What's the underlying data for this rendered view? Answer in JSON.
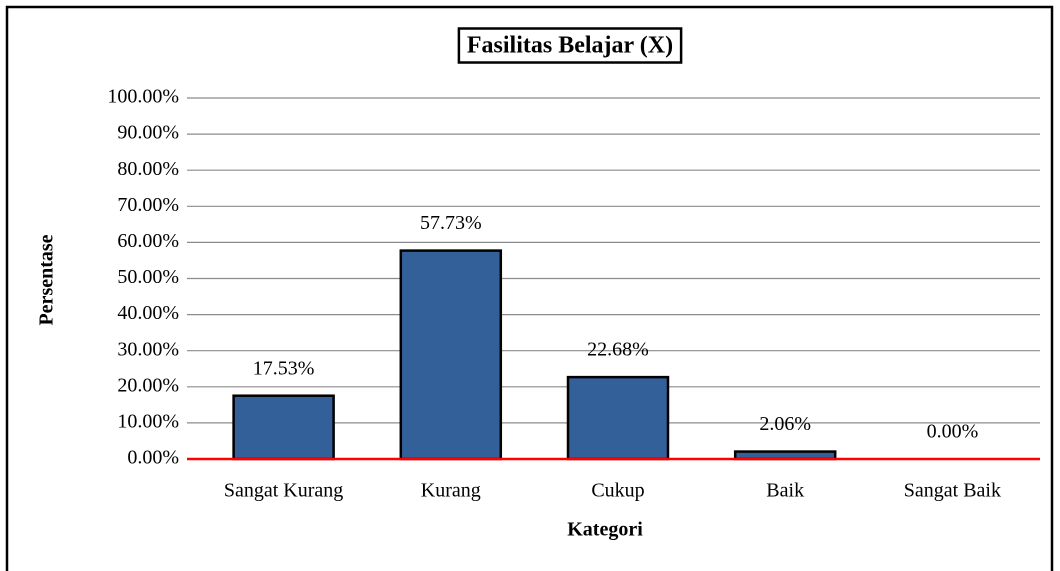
{
  "chart_data": {
    "type": "bar",
    "title": "Fasilitas Belajar (X)",
    "x_label": "Kategori",
    "y_label": "Persentase",
    "categories": [
      "Sangat Kurang",
      "Kurang",
      "Cukup",
      "Baik",
      "Sangat Baik"
    ],
    "values": [
      17.53,
      57.73,
      22.68,
      2.06,
      0.0
    ],
    "value_labels": [
      "17.53%",
      "57.73%",
      "22.68%",
      "2.06%",
      "0.00%"
    ],
    "color": "#34609a",
    "baseline_color": "#ff0000",
    "ylim": [
      0,
      100
    ],
    "yticks": [
      {
        "value": 0,
        "label": "0.00%"
      },
      {
        "value": 10,
        "label": "10.00%"
      },
      {
        "value": 20,
        "label": "20.00%"
      },
      {
        "value": 30,
        "label": "30.00%"
      },
      {
        "value": 40,
        "label": "40.00%"
      },
      {
        "value": 50,
        "label": "50.00%"
      },
      {
        "value": 60,
        "label": "60.00%"
      },
      {
        "value": 70,
        "label": "70.00%"
      },
      {
        "value": 80,
        "label": "80.00%"
      },
      {
        "value": 90,
        "label": "90.00%"
      },
      {
        "value": 100,
        "label": "100.00%"
      }
    ],
    "grid": true
  }
}
